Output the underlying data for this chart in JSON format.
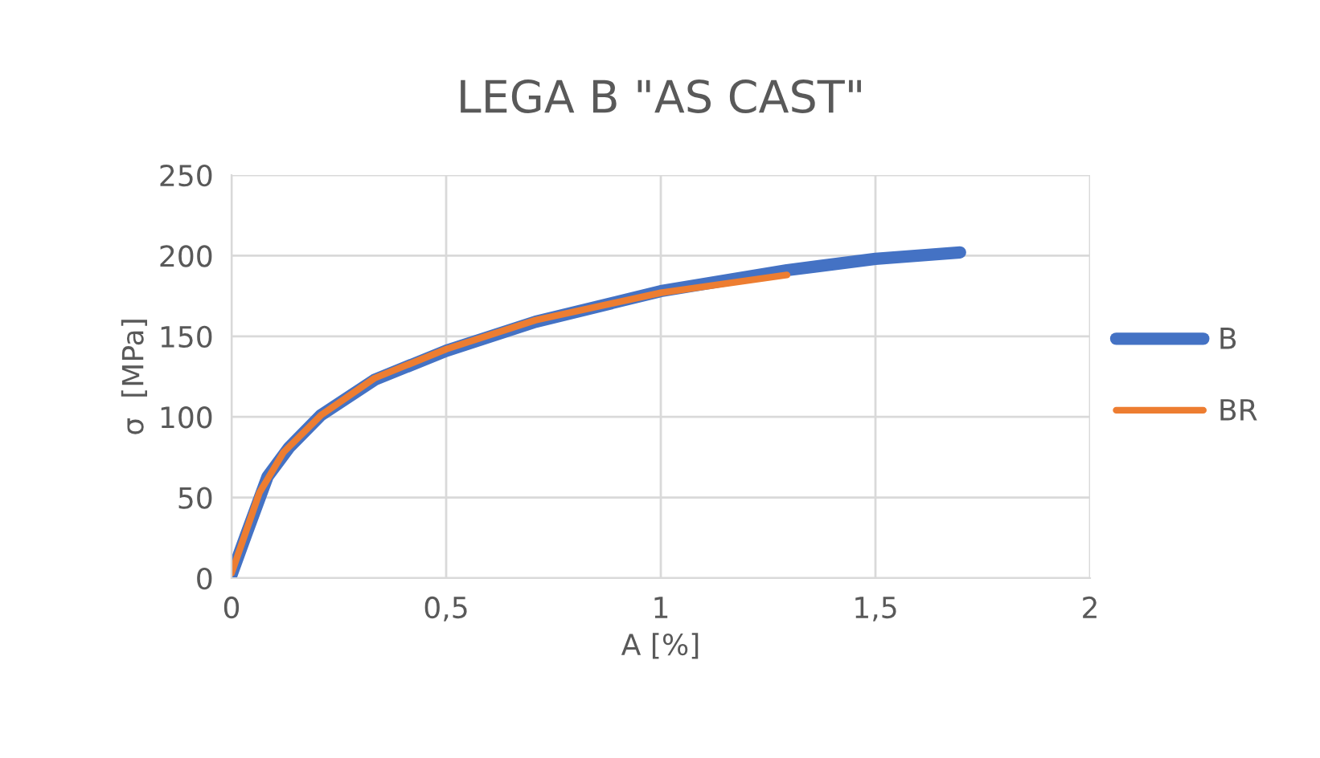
{
  "chart_data": {
    "type": "line",
    "title": "LEGA B \"AS CAST\"",
    "xlabel": "A [%]",
    "ylabel": "σ  [MPa]",
    "xlim": [
      0,
      2
    ],
    "xticks": [
      0,
      {
        "value": 0.5,
        "label": "0,5"
      },
      1,
      {
        "value": 1.5,
        "label": "1,5"
      },
      2
    ],
    "ylim": [
      0,
      250
    ],
    "yticks": [
      0,
      50,
      100,
      150,
      200,
      250
    ],
    "grid": true,
    "legend": "right",
    "line_style": "solid",
    "marker": "none",
    "series": [
      {
        "name": "B",
        "color": "#4472c4",
        "x": [
          0,
          0.034,
          0.084,
          0.134,
          0.208,
          0.333,
          0.5,
          0.708,
          1.0,
          1.294,
          1.5,
          1.697
        ],
        "values": [
          2,
          27,
          63,
          81,
          101,
          123,
          141,
          159,
          178,
          191,
          198,
          202
        ]
      },
      {
        "name": "BR",
        "color": "#ed7d31",
        "x": [
          0,
          0.065,
          0.121,
          0.208,
          0.333,
          0.5,
          0.708,
          1.0,
          1.294
        ],
        "values": [
          3,
          53,
          78,
          101,
          124,
          142,
          160,
          177,
          188
        ]
      }
    ]
  }
}
